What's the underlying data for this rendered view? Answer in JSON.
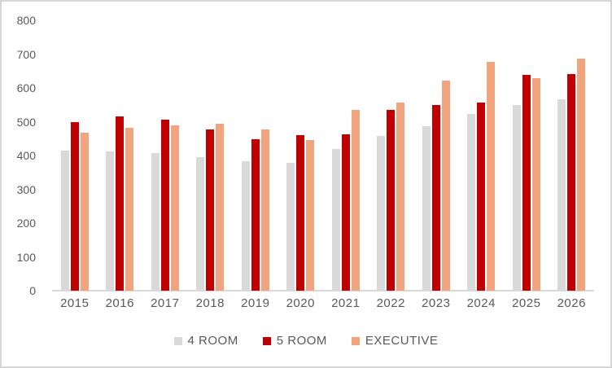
{
  "chart_data": {
    "type": "bar",
    "title": "",
    "categories": [
      "2015",
      "2016",
      "2017",
      "2018",
      "2019",
      "2020",
      "2021",
      "2022",
      "2023",
      "2024",
      "2025",
      "2026"
    ],
    "series": [
      {
        "name": "4 ROOM",
        "color": "#D9D9D9",
        "values": [
          415,
          413,
          407,
          395,
          382,
          378,
          419,
          457,
          487,
          522,
          549,
          566
        ]
      },
      {
        "name": "5 ROOM",
        "color": "#C00000",
        "values": [
          500,
          515,
          505,
          477,
          449,
          460,
          463,
          534,
          550,
          557,
          639,
          641
        ]
      },
      {
        "name": "EXECUTIVE",
        "color": "#F1A57F",
        "values": [
          467,
          481,
          488,
          493,
          478,
          446,
          536,
          557,
          622,
          676,
          629,
          686
        ]
      }
    ],
    "ylim": [
      0,
      800
    ],
    "ytick_step": 100,
    "ytick_labels": [
      "0",
      "100",
      "200",
      "300",
      "400",
      "500",
      "600",
      "700",
      "800"
    ],
    "grid": false,
    "legend_position": "bottom",
    "axis_line_color": "#D9D9D9",
    "label_color": "#595959",
    "background_color": "#FFFFFF",
    "border_color": "#D6D6D6"
  }
}
